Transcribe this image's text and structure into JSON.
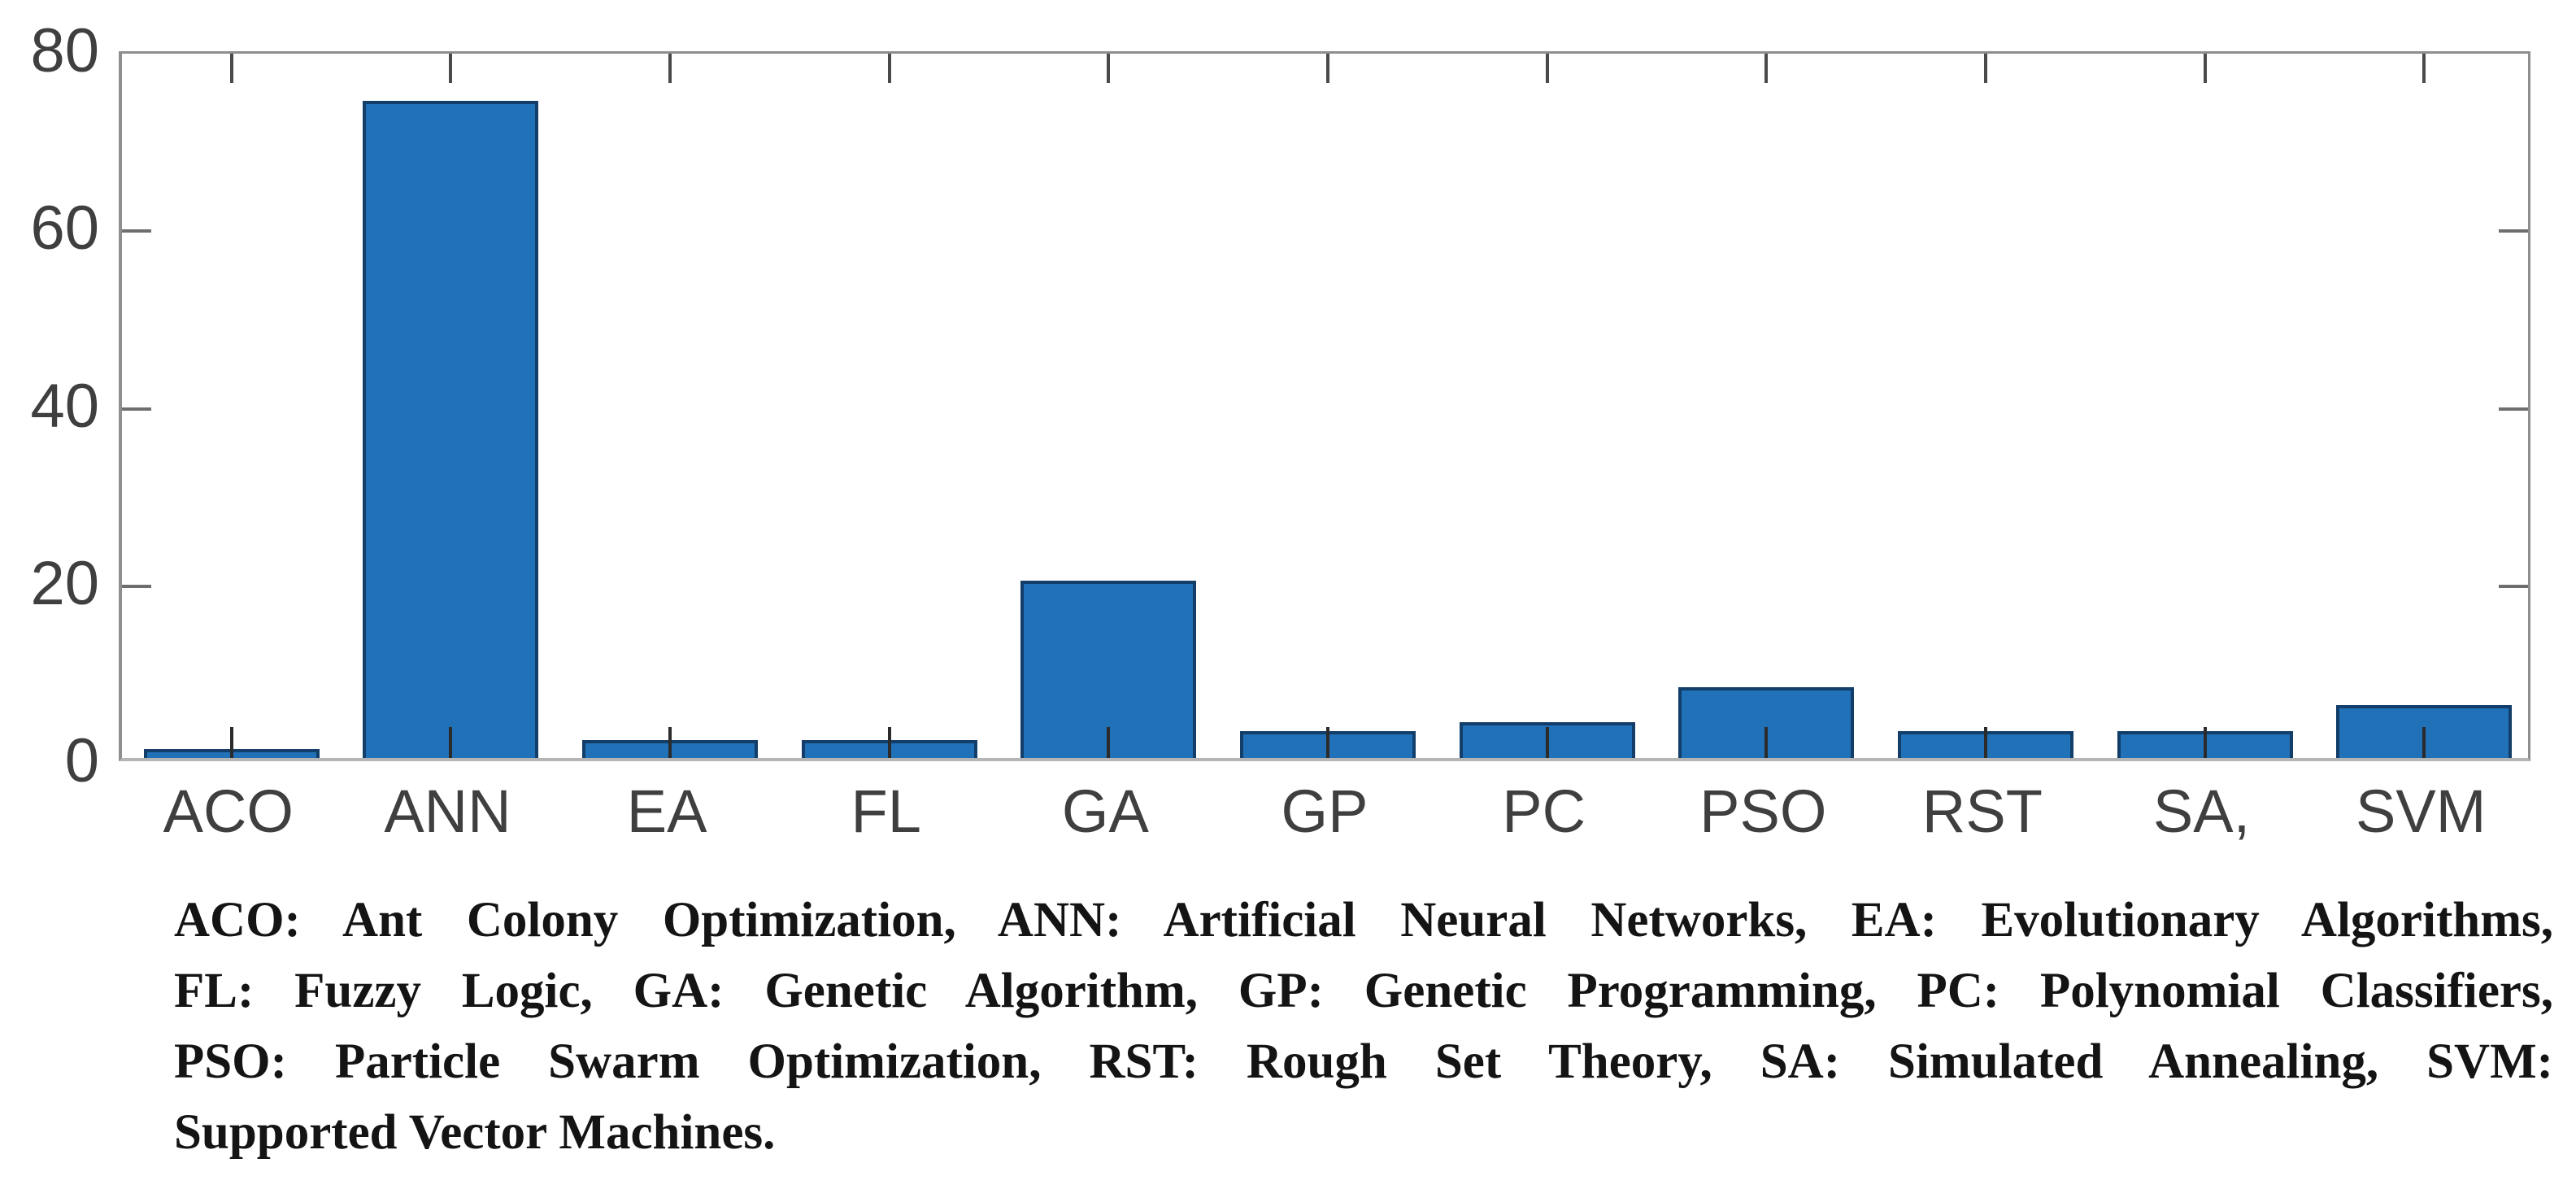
{
  "chart_data": {
    "type": "bar",
    "categories": [
      "ACO",
      "ANN",
      "EA",
      "FL",
      "GA",
      "GP",
      "PC",
      "PSO",
      "RST",
      "SA,",
      "SVM"
    ],
    "values": [
      1,
      74,
      2,
      2,
      20,
      3,
      4,
      8,
      3,
      3,
      6
    ],
    "title": "",
    "xlabel": "",
    "ylabel": "",
    "ylim": [
      0,
      80
    ],
    "yticks": [
      0,
      20,
      40,
      60,
      80
    ],
    "inner_yticks": [
      20,
      40,
      60
    ],
    "grid": false,
    "legend": "none",
    "box": true,
    "tick_direction": "in",
    "bar_color": "#2171B8",
    "bar_edge_color": "#123E69",
    "axis_frame_color": "#8E8E8E",
    "baseline_color": "#B5B5B5",
    "tick_mark_color": "#2B2B2B",
    "tick_label_color": "#3F3F3F"
  },
  "caption": {
    "lines": [
      "ACO: Ant Colony Optimization, ANN: Artificial Neural Networks, EA: Evolutionary Algorithms,",
      "FL: Fuzzy Logic, GA: Genetic Algorithm, GP: Genetic Programming, PC: Polynomial Classifiers,",
      "PSO: Particle Swarm Optimization, RST: Rough Set Theory, SA: Simulated Annealing, SVM:",
      "Supported Vector Machines."
    ]
  }
}
